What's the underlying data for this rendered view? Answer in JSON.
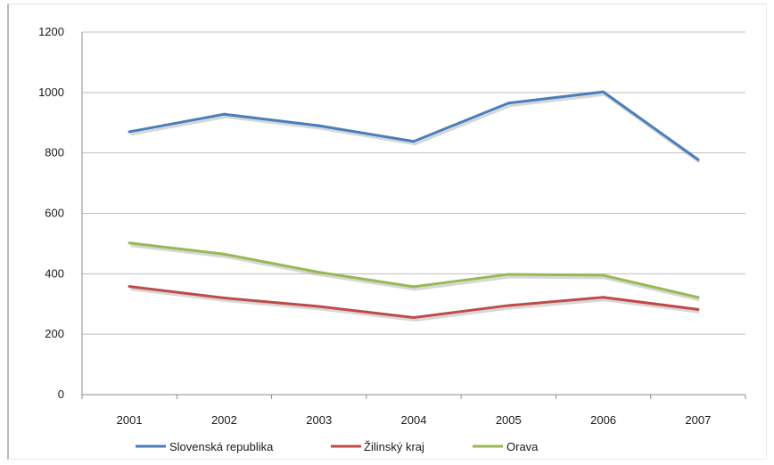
{
  "chart_data": {
    "type": "line",
    "categories": [
      "2001",
      "2002",
      "2003",
      "2004",
      "2005",
      "2006",
      "2007"
    ],
    "ylim": [
      0,
      1200
    ],
    "yticks": [
      0,
      200,
      400,
      600,
      800,
      1000,
      1200
    ],
    "grid": true,
    "legend_position": "bottom",
    "series": [
      {
        "name": "Slovenská republika",
        "color": "#4a7ebb",
        "values": [
          870,
          928,
          890,
          838,
          965,
          1002,
          778
        ]
      },
      {
        "name": "Žilinský kraj",
        "color": "#be4b48",
        "values": [
          358,
          320,
          292,
          255,
          295,
          322,
          282
        ]
      },
      {
        "name": "Orava",
        "color": "#98b954",
        "values": [
          502,
          465,
          405,
          357,
          398,
          395,
          322
        ]
      }
    ]
  }
}
